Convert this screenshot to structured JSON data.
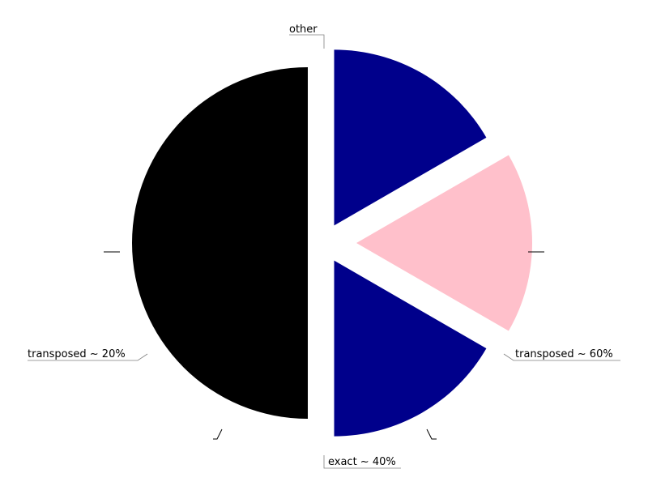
{
  "chart_data": {
    "type": "pie",
    "title": "",
    "slices": [
      {
        "label": "other",
        "value": 50,
        "color": "#000000"
      },
      {
        "label": "transposed ~ 20%",
        "value": 16.667,
        "color": "#00008b"
      },
      {
        "label": "exact ~ 40%",
        "value": 16.667,
        "color": "#ffc0cb"
      },
      {
        "label": "transposed ~ 60%",
        "value": 16.667,
        "color": "#00008b"
      }
    ],
    "legend": "none",
    "labels": "outside-with-leaders",
    "exploded": true
  }
}
